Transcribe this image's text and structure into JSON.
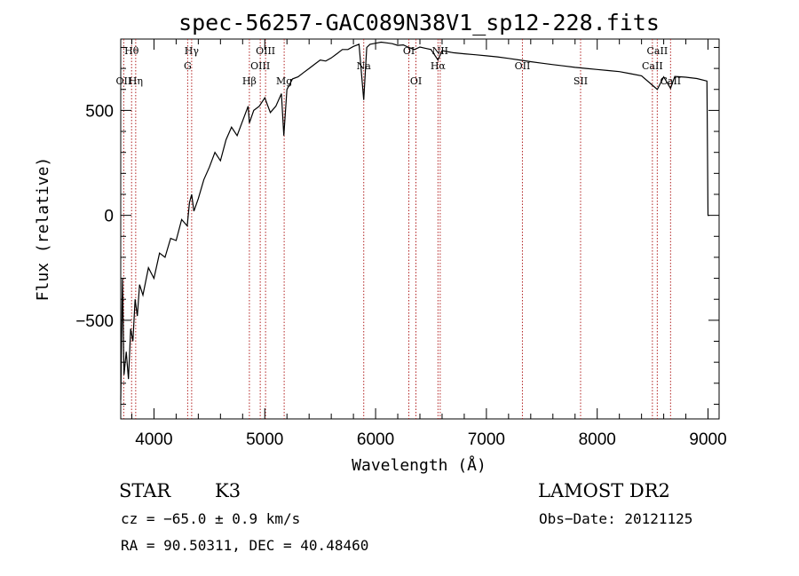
{
  "chart_data": {
    "type": "line",
    "title": "spec-56257-GAC089N38V1_sp12-228.fits",
    "xlabel": "Wavelength (Å)",
    "ylabel": "Flux (relative)",
    "xlim": [
      3700,
      9100
    ],
    "ylim": [
      -970,
      840
    ],
    "xticks": [
      4000,
      5000,
      6000,
      7000,
      8000,
      9000
    ],
    "yticks": [
      -500,
      0,
      500
    ],
    "grid": false,
    "series": [
      {
        "x": [
          3700,
          3715,
          3730,
          3750,
          3770,
          3790,
          3810,
          3830,
          3850,
          3870,
          3900,
          3950,
          4000,
          4050,
          4100,
          4150,
          4200,
          4250,
          4300,
          4320,
          4340,
          4360,
          4400,
          4450,
          4500,
          4550,
          4600,
          4650,
          4700,
          4750,
          4800,
          4850,
          4861,
          4900,
          4950,
          5000,
          5050,
          5100,
          5150,
          5172,
          5200,
          5250,
          5300,
          5350,
          5400,
          5450,
          5500,
          5550,
          5600,
          5650,
          5700,
          5750,
          5800,
          5850,
          5893,
          5920,
          5950,
          6000,
          6050,
          6100,
          6150,
          6200,
          6250,
          6300,
          6350,
          6400,
          6450,
          6500,
          6563,
          6600,
          6700,
          6800,
          6900,
          7000,
          7100,
          7200,
          7300,
          7400,
          7500,
          7600,
          7700,
          7800,
          7900,
          8000,
          8100,
          8200,
          8300,
          8400,
          8498,
          8542,
          8600,
          8662,
          8700,
          8800,
          8900,
          8990,
          9000,
          9010
        ],
        "y": [
          -880,
          -300,
          -760,
          -650,
          -780,
          -540,
          -600,
          -400,
          -480,
          -330,
          -380,
          -250,
          -300,
          -180,
          -200,
          -110,
          -120,
          -20,
          -50,
          60,
          100,
          20,
          80,
          170,
          230,
          300,
          260,
          360,
          420,
          380,
          450,
          520,
          440,
          500,
          520,
          560,
          490,
          520,
          580,
          380,
          600,
          650,
          660,
          680,
          700,
          720,
          740,
          735,
          750,
          770,
          790,
          790,
          805,
          815,
          550,
          800,
          815,
          820,
          825,
          822,
          818,
          810,
          812,
          800,
          790,
          802,
          796,
          790,
          740,
          785,
          775,
          770,
          765,
          760,
          755,
          748,
          740,
          732,
          725,
          718,
          712,
          705,
          700,
          695,
          690,
          685,
          675,
          665,
          620,
          600,
          660,
          605,
          662,
          658,
          652,
          640,
          0,
          0
        ]
      }
    ],
    "spectral_lines": [
      {
        "label": "Hθ",
        "x": 3798,
        "row": 1
      },
      {
        "label": "OII",
        "x": 3727,
        "row": 3
      },
      {
        "label": "Hη",
        "x": 3835,
        "row": 3
      },
      {
        "label": "Hγ",
        "x": 4340,
        "row": 1
      },
      {
        "label": "G",
        "x": 4304,
        "row": 2
      },
      {
        "label": "Hβ",
        "x": 4861,
        "row": 3
      },
      {
        "label": "OIII",
        "x": 5007,
        "row": 1
      },
      {
        "label": "OIII",
        "x": 4959,
        "row": 2
      },
      {
        "label": "Mg",
        "x": 5175,
        "row": 3
      },
      {
        "label": "Na",
        "x": 5893,
        "row": 2
      },
      {
        "label": "OI",
        "x": 6300,
        "row": 1
      },
      {
        "label": "OI",
        "x": 6364,
        "row": 3
      },
      {
        "label": "NII",
        "x": 6583,
        "row": 1
      },
      {
        "label": "Hα",
        "x": 6563,
        "row": 2
      },
      {
        "label": "OII",
        "x": 7325,
        "row": 2
      },
      {
        "label": "SII",
        "x": 7850,
        "row": 3
      },
      {
        "label": "CaII",
        "x": 8542,
        "row": 1
      },
      {
        "label": "CaII",
        "x": 8498,
        "row": 2
      },
      {
        "label": "CaII",
        "x": 8662,
        "row": 3
      }
    ]
  },
  "info": {
    "object_class": "STAR",
    "subclass": "K3",
    "survey": "LAMOST DR2",
    "cz": "cz = −65.0 ± 0.9 km/s",
    "obs_date": "Obs−Date: 20121125",
    "coords": "RA =  90.50311, DEC =  40.48460"
  },
  "colors": {
    "spectrum": "#000000",
    "line_markers": "#b22222",
    "axes": "#000000"
  }
}
